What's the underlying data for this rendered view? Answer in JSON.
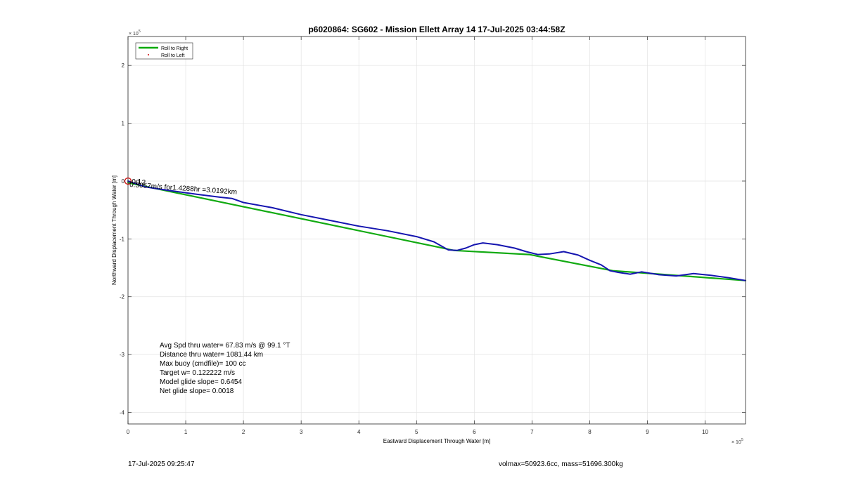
{
  "chart_data": {
    "type": "line",
    "title": "p6020864: SG602 - Mission Ellett Array 14 17-Jul-2025 03:44:58Z",
    "xlabel": "Eastward Displacement Through Water [m]",
    "ylabel": "Northward Displacement Through Water [m]",
    "x_exponent_label": "× 10",
    "x_exponent_power": "5",
    "y_exponent_label": "× 10",
    "y_exponent_power": "5",
    "xlim": [
      0,
      10.7
    ],
    "ylim": [
      -4.2,
      2.5
    ],
    "scale_note": "axis values in units of 1e5 m",
    "xticks": [
      0,
      1,
      2,
      3,
      4,
      5,
      6,
      7,
      8,
      9,
      10
    ],
    "xtick_labels": [
      "0",
      "1",
      "2",
      "3",
      "4",
      "5",
      "6",
      "7",
      "8",
      "9",
      "10"
    ],
    "yticks": [
      -4,
      -3,
      -2,
      -1,
      0,
      1,
      2
    ],
    "ytick_labels": [
      "-4",
      "-3",
      "-2",
      "-1",
      "0",
      "1",
      "2"
    ],
    "grid": true,
    "legend_placement": "top-left",
    "legend": [
      {
        "label": "Roll to Right",
        "color": "#00aa00",
        "style": "line"
      },
      {
        "label": "Roll to Left",
        "color": "#cc0000",
        "style": "dot"
      }
    ],
    "series": [
      {
        "name": "Roll to Right",
        "color": "#11aa11",
        "x": [
          0.0,
          5.65,
          6.95,
          8.4,
          10.7
        ],
        "y": [
          -0.03,
          -1.2,
          -1.27,
          -1.55,
          -1.72
        ]
      },
      {
        "color": "#1515b0",
        "x": [
          0.0,
          0.3,
          0.7,
          1.2,
          1.6,
          1.8,
          2.0,
          2.5,
          3.0,
          3.5,
          4.0,
          4.5,
          5.0,
          5.3,
          5.55,
          5.7,
          5.85,
          6.0,
          6.15,
          6.4,
          6.7,
          6.9,
          7.1,
          7.3,
          7.55,
          7.8,
          8.0,
          8.2,
          8.35,
          8.5,
          8.7,
          8.9,
          9.2,
          9.5,
          9.8,
          10.1,
          10.4,
          10.7
        ],
        "y": [
          0.0,
          -0.1,
          -0.16,
          -0.23,
          -0.28,
          -0.3,
          -0.37,
          -0.46,
          -0.58,
          -0.68,
          -0.78,
          -0.86,
          -0.96,
          -1.05,
          -1.19,
          -1.2,
          -1.16,
          -1.1,
          -1.07,
          -1.1,
          -1.16,
          -1.22,
          -1.27,
          -1.26,
          -1.22,
          -1.28,
          -1.37,
          -1.45,
          -1.55,
          -1.58,
          -1.61,
          -1.57,
          -1.62,
          -1.64,
          -1.6,
          -1.63,
          -1.67,
          -1.72
        ]
      }
    ],
    "start_marker": {
      "x": 0,
      "y": 0,
      "color": "#cc0000"
    },
    "point_labels": [
      "0.5057m/s for1.4288hr =3.0192km",
      "-0.1",
      "-0.2"
    ],
    "annotations": [
      "Avg Spd thru water= 67.83 m/s @  99.1 °T",
      "Distance thru water= 1081.44 km",
      "Max buoy (cmdfile)= 100 cc",
      "Target w= 0.122222 m/s",
      "Model glide slope= 0.6454",
      "Net glide slope= 0.0018"
    ]
  },
  "footer": {
    "date": "17-Jul-2025 09:25:47",
    "info": "volmax=50923.6cc, mass=51696.300kg"
  }
}
